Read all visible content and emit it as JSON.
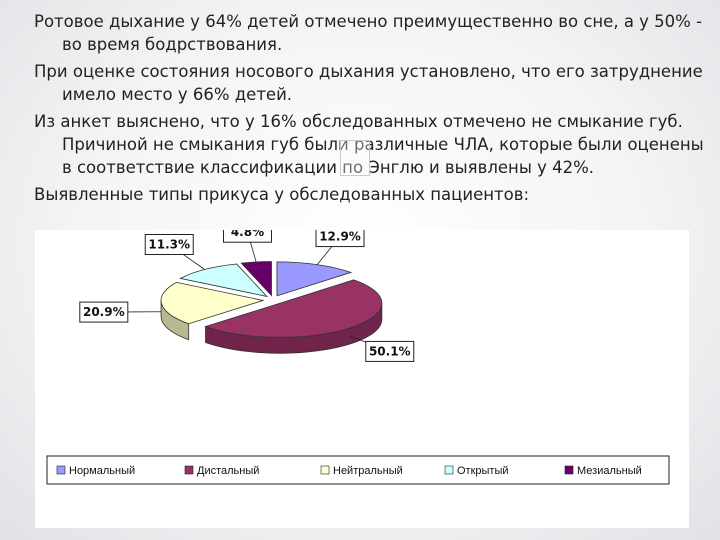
{
  "paragraphs": [
    "Ротовое дыхание у 64% детей отмечено преимущественно во сне, а у 50% - во время бодрствования.",
    "При оценке состояния носового дыхания установлено, что его затруднение имело место у 66% детей.",
    "Из анкет выяснено, что у 16% обследованных отмечено не смыкание губ. Причиной не смыкания губ были различные ЧЛА, которые были оценены в соответствие классификации по Энглю  и выявлены у 42%.",
    "Выявленные типы прикуса у обследованных пациентов:"
  ],
  "chart_data": {
    "type": "pie",
    "title": "",
    "categories": [
      "Нормальный",
      "Дистальный",
      "Нейтральный",
      "Открытый",
      "Мезиальный"
    ],
    "values": [
      12.9,
      50.1,
      20.9,
      11.3,
      4.8
    ],
    "labels": [
      "12.9%",
      "50.1%",
      "20.9%",
      "11.3%",
      "4.8%"
    ],
    "colors": [
      "#9999ff",
      "#993366",
      "#ffffcc",
      "#ccffff",
      "#660066"
    ],
    "legend_position": "bottom",
    "three_d": true
  }
}
